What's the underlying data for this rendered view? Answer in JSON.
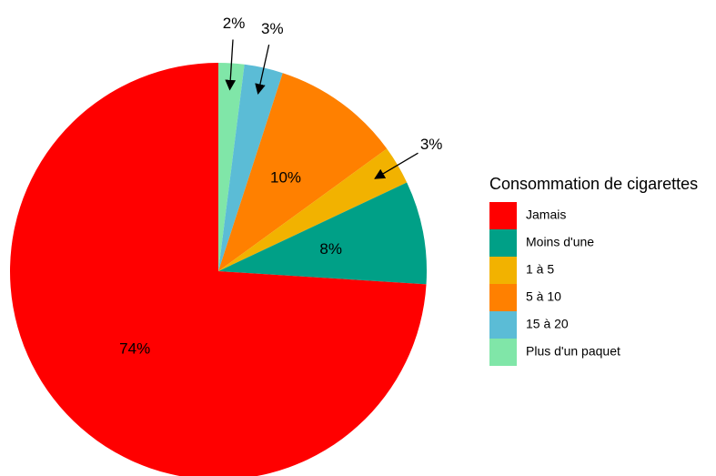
{
  "chart_data": {
    "type": "pie",
    "legend_title": "Consommation de cigarettes",
    "categories": [
      "Jamais",
      "Moins d'une",
      "1 à 5",
      "5 à 10",
      "15 à 20",
      "Plus d'un paquet"
    ],
    "values": [
      74,
      8,
      3,
      10,
      3,
      2
    ],
    "value_labels": [
      "74%",
      "8%",
      "3%",
      "10%",
      "3%",
      "2%"
    ],
    "colors": [
      "#ff0000",
      "#00a087",
      "#f2b200",
      "#ff8000",
      "#5bbcd6",
      "#80e6a8"
    ],
    "legend": "right"
  }
}
